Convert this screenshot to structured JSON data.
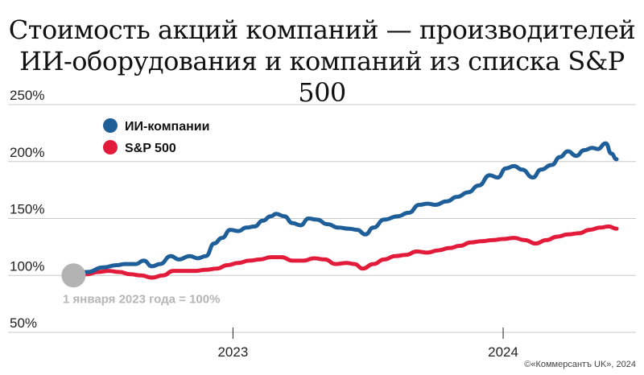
{
  "chart_data": {
    "type": "line",
    "title": "Стоимость акций компаний — производителей ИИ-оборудования и компаний из списка S&P 500",
    "title_lines": [
      "Стоимость акций компаний — производителей",
      "ИИ-оборудования и компаний из списка S&P 500"
    ],
    "y_unit": "%",
    "ylim": [
      50,
      250
    ],
    "yticks": [
      250,
      200,
      150,
      100,
      50
    ],
    "ytick_labels": [
      "250%",
      "200%",
      "150%",
      "100%",
      "50%"
    ],
    "x_ticks": [
      {
        "x": 2023.0,
        "label": "2023"
      },
      {
        "x": 2024.0,
        "label": "2024"
      }
    ],
    "xlim": [
      2022.4,
      2024.45
    ],
    "baseline_note": "1 января 2023 года = 100%",
    "credit": "©«Коммерсантъ UK», 2024",
    "legend_position": "top-left",
    "grid": {
      "horizontal": true,
      "vertical": false
    },
    "series": [
      {
        "name": "ИИ-компании",
        "color": "#1f5f99",
        "points": [
          [
            2022.41,
            100
          ],
          [
            2022.46,
            103
          ],
          [
            2022.52,
            107
          ],
          [
            2022.57,
            109
          ],
          [
            2022.6,
            110
          ],
          [
            2022.64,
            110
          ],
          [
            2022.67,
            113
          ],
          [
            2022.7,
            108
          ],
          [
            2022.73,
            110
          ],
          [
            2022.77,
            117
          ],
          [
            2022.8,
            114
          ],
          [
            2022.84,
            117
          ],
          [
            2022.87,
            115
          ],
          [
            2022.9,
            117
          ],
          [
            2022.93,
            128
          ],
          [
            2022.96,
            133
          ],
          [
            2022.99,
            140
          ],
          [
            2023.02,
            139
          ],
          [
            2023.05,
            142
          ],
          [
            2023.08,
            143
          ],
          [
            2023.11,
            148
          ],
          [
            2023.14,
            152
          ],
          [
            2023.16,
            154
          ],
          [
            2023.19,
            152
          ],
          [
            2023.22,
            146
          ],
          [
            2023.25,
            144
          ],
          [
            2023.28,
            150
          ],
          [
            2023.31,
            149
          ],
          [
            2023.35,
            145
          ],
          [
            2023.39,
            142
          ],
          [
            2023.43,
            141
          ],
          [
            2023.46,
            140
          ],
          [
            2023.49,
            136
          ],
          [
            2023.52,
            142
          ],
          [
            2023.56,
            149
          ],
          [
            2023.61,
            152
          ],
          [
            2023.65,
            155
          ],
          [
            2023.69,
            162
          ],
          [
            2023.72,
            163
          ],
          [
            2023.75,
            162
          ],
          [
            2023.79,
            165
          ],
          [
            2023.83,
            169
          ],
          [
            2023.87,
            173
          ],
          [
            2023.91,
            179
          ],
          [
            2023.95,
            188
          ],
          [
            2023.98,
            186
          ],
          [
            2024.01,
            194
          ],
          [
            2024.04,
            196
          ],
          [
            2024.07,
            193
          ],
          [
            2024.11,
            186
          ],
          [
            2024.14,
            193
          ],
          [
            2024.18,
            197
          ],
          [
            2024.21,
            204
          ],
          [
            2024.24,
            209
          ],
          [
            2024.27,
            205
          ],
          [
            2024.3,
            210
          ],
          [
            2024.33,
            212
          ],
          [
            2024.35,
            211
          ],
          [
            2024.38,
            216
          ],
          [
            2024.4,
            207
          ],
          [
            2024.42,
            202
          ]
        ]
      },
      {
        "name": "S&P 500",
        "color": "#e31b3b",
        "points": [
          [
            2022.41,
            100
          ],
          [
            2022.46,
            101
          ],
          [
            2022.5,
            103
          ],
          [
            2022.54,
            104
          ],
          [
            2022.58,
            103
          ],
          [
            2022.62,
            101
          ],
          [
            2022.66,
            100
          ],
          [
            2022.7,
            98
          ],
          [
            2022.74,
            100
          ],
          [
            2022.78,
            104
          ],
          [
            2022.82,
            104
          ],
          [
            2022.86,
            104
          ],
          [
            2022.9,
            105
          ],
          [
            2022.94,
            106
          ],
          [
            2022.98,
            109
          ],
          [
            2023.02,
            111
          ],
          [
            2023.06,
            113
          ],
          [
            2023.1,
            114
          ],
          [
            2023.14,
            116
          ],
          [
            2023.18,
            116
          ],
          [
            2023.22,
            113
          ],
          [
            2023.26,
            113
          ],
          [
            2023.3,
            115
          ],
          [
            2023.34,
            114
          ],
          [
            2023.38,
            110
          ],
          [
            2023.42,
            111
          ],
          [
            2023.45,
            110
          ],
          [
            2023.48,
            106
          ],
          [
            2023.52,
            110
          ],
          [
            2023.56,
            114
          ],
          [
            2023.6,
            117
          ],
          [
            2023.64,
            118
          ],
          [
            2023.68,
            121
          ],
          [
            2023.72,
            120
          ],
          [
            2023.76,
            122
          ],
          [
            2023.8,
            124
          ],
          [
            2023.84,
            126
          ],
          [
            2023.88,
            129
          ],
          [
            2023.92,
            130
          ],
          [
            2023.96,
            131
          ],
          [
            2024.0,
            132
          ],
          [
            2024.04,
            133
          ],
          [
            2024.08,
            131
          ],
          [
            2024.12,
            128
          ],
          [
            2024.16,
            131
          ],
          [
            2024.2,
            134
          ],
          [
            2024.24,
            136
          ],
          [
            2024.28,
            137
          ],
          [
            2024.32,
            140
          ],
          [
            2024.36,
            142
          ],
          [
            2024.39,
            143
          ],
          [
            2024.42,
            141
          ]
        ]
      }
    ]
  }
}
